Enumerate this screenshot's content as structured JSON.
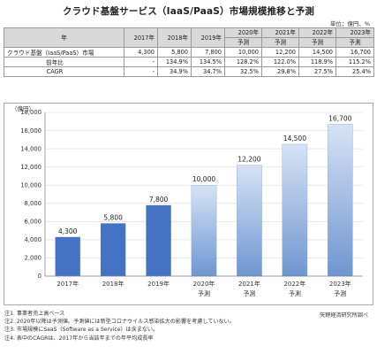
{
  "title": "クラウド基盤サービス（IaaS/PaaS）市場規模推移と予測",
  "unit_note": "単位：億円、%",
  "table": {
    "corner": "年",
    "years": [
      "2017年",
      "2018年",
      "2019年",
      "2020年",
      "2021年",
      "2022年",
      "2023年"
    ],
    "forecast_label": "予測",
    "rows": [
      {
        "label": "クラウド基盤（IaaS/PaaS）市場",
        "values": [
          "4,300",
          "5,800",
          "7,800",
          "10,000",
          "12,200",
          "14,500",
          "16,700"
        ]
      },
      {
        "label": "前年比",
        "values": [
          "-",
          "134.9%",
          "134.5%",
          "128.2%",
          "122.0%",
          "118.9%",
          "115.2%"
        ]
      },
      {
        "label": "CAGR",
        "values": [
          "-",
          "34.9%",
          "34.7%",
          "32.5%",
          "29.8%",
          "27.5%",
          "25.4%"
        ]
      }
    ]
  },
  "chart_data": {
    "type": "bar",
    "categories": [
      "2017年",
      "2018年",
      "2019年",
      "2020年",
      "2021年",
      "2022年",
      "2023年"
    ],
    "forecast_flags": [
      false,
      false,
      false,
      true,
      true,
      true,
      true
    ],
    "forecast_label": "予測",
    "values": [
      4300,
      5800,
      7800,
      10000,
      12200,
      14500,
      16700
    ],
    "data_labels": [
      "4,300",
      "5,800",
      "7,800",
      "10,000",
      "12,200",
      "14,500",
      "16,700"
    ],
    "ylabel": "（億円）",
    "ylim": [
      0,
      18000
    ],
    "yticks": [
      0,
      2000,
      4000,
      6000,
      8000,
      10000,
      12000,
      14000,
      16000,
      18000
    ],
    "ytick_labels": [
      "0",
      "2,000",
      "4,000",
      "6,000",
      "8,000",
      "10,000",
      "12,000",
      "14,000",
      "16,000",
      "18,000"
    ],
    "grid": true,
    "colors": {
      "actual": "#4472c4",
      "forecast_top": "#d6e3f5",
      "forecast_bottom": "#6f96d1",
      "axis": "#7f7f7f"
    }
  },
  "notes": [
    "注1. 事業者売上高ベース",
    "注2. 2020年以降は予測値。予測値には新型コロナウイルス感染拡大の影響を考慮していない。",
    "注3. 市場規模にSaaS（Software as a Service）は含まない。",
    "注4. 表中のCAGRは、2017年から当該年までの年平均成長率"
  ],
  "source": "矢野経済研究所調べ"
}
